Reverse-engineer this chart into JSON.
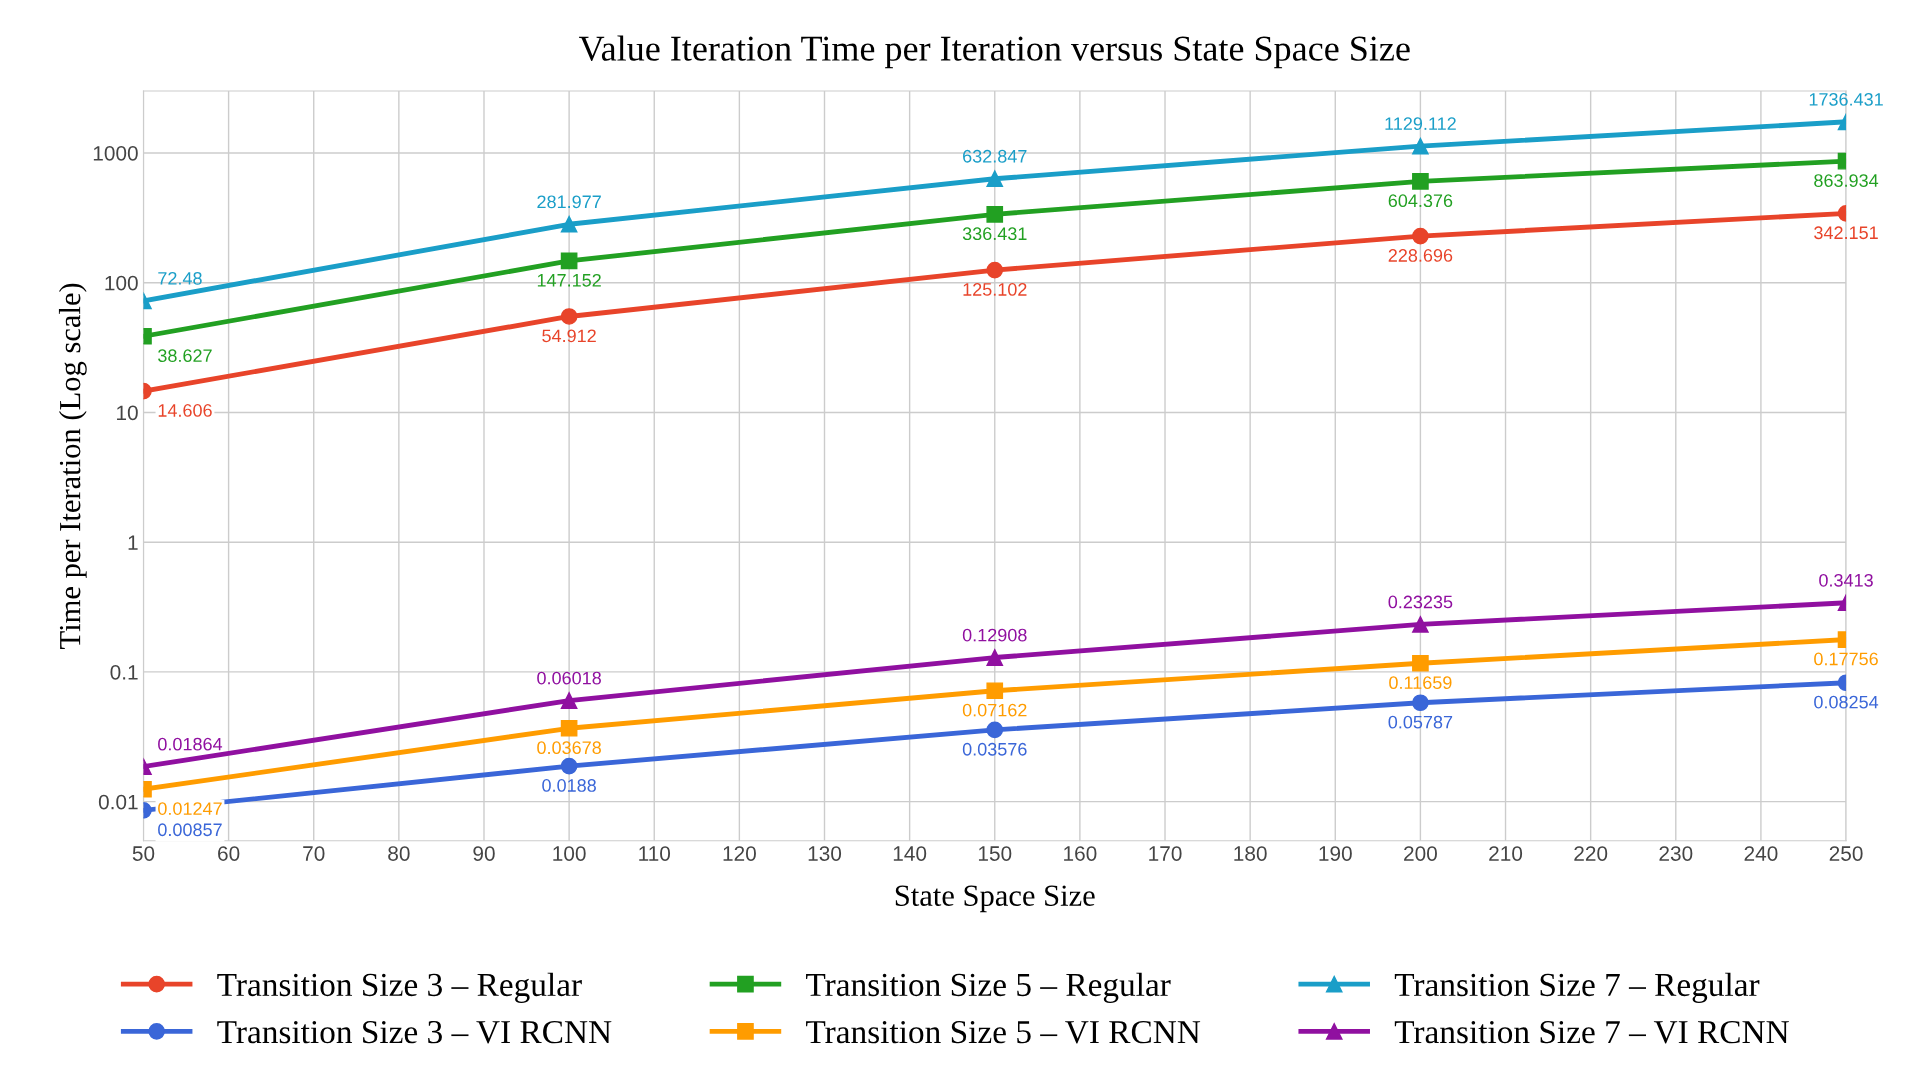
{
  "chart_data": {
    "type": "line",
    "title": "Value Iteration Time per Iteration versus State Space Size",
    "xlabel": "State Space Size",
    "ylabel": "Time per Iteration (Log scale)",
    "x": [
      50,
      100,
      150,
      200,
      250
    ],
    "series": [
      {
        "name": "Transition Size 3 – Regular",
        "color": "#e8442a",
        "marker": "circle",
        "values": [
          14.606,
          54.912,
          125.102,
          228.696,
          342.151
        ]
      },
      {
        "name": "Transition Size 5 – Regular",
        "color": "#22a022",
        "marker": "square",
        "values": [
          38.627,
          147.152,
          336.431,
          604.376,
          863.934
        ]
      },
      {
        "name": "Transition Size 7 – Regular",
        "color": "#1a9ec8",
        "marker": "triangle",
        "values": [
          72.48,
          281.977,
          632.847,
          1129.112,
          1736.431
        ]
      },
      {
        "name": "Transition Size 3 – VI RCNN",
        "color": "#3a66d8",
        "marker": "circle",
        "values": [
          0.00857,
          0.0188,
          0.03576,
          0.05787,
          0.08254
        ]
      },
      {
        "name": "Transition Size 5 – VI RCNN",
        "color": "#ff9c00",
        "marker": "square",
        "values": [
          0.01247,
          0.03678,
          0.07162,
          0.11659,
          0.17756
        ]
      },
      {
        "name": "Transition Size 7 – VI RCNN",
        "color": "#9010a0",
        "marker": "triangle",
        "values": [
          0.01864,
          0.06018,
          0.12908,
          0.23235,
          0.3413
        ]
      }
    ],
    "log": "y",
    "xlim": [
      50,
      250
    ],
    "xticks": [
      50,
      60,
      70,
      80,
      90,
      100,
      110,
      120,
      130,
      140,
      150,
      160,
      170,
      180,
      190,
      200,
      210,
      220,
      230,
      240,
      250
    ],
    "ylim": [
      0.005,
      3000
    ],
    "yticks": [
      0.01,
      0.1,
      1,
      10,
      100,
      1000
    ],
    "grid": true,
    "legend": "bottom",
    "data_labels": true,
    "line_style": "solid"
  }
}
